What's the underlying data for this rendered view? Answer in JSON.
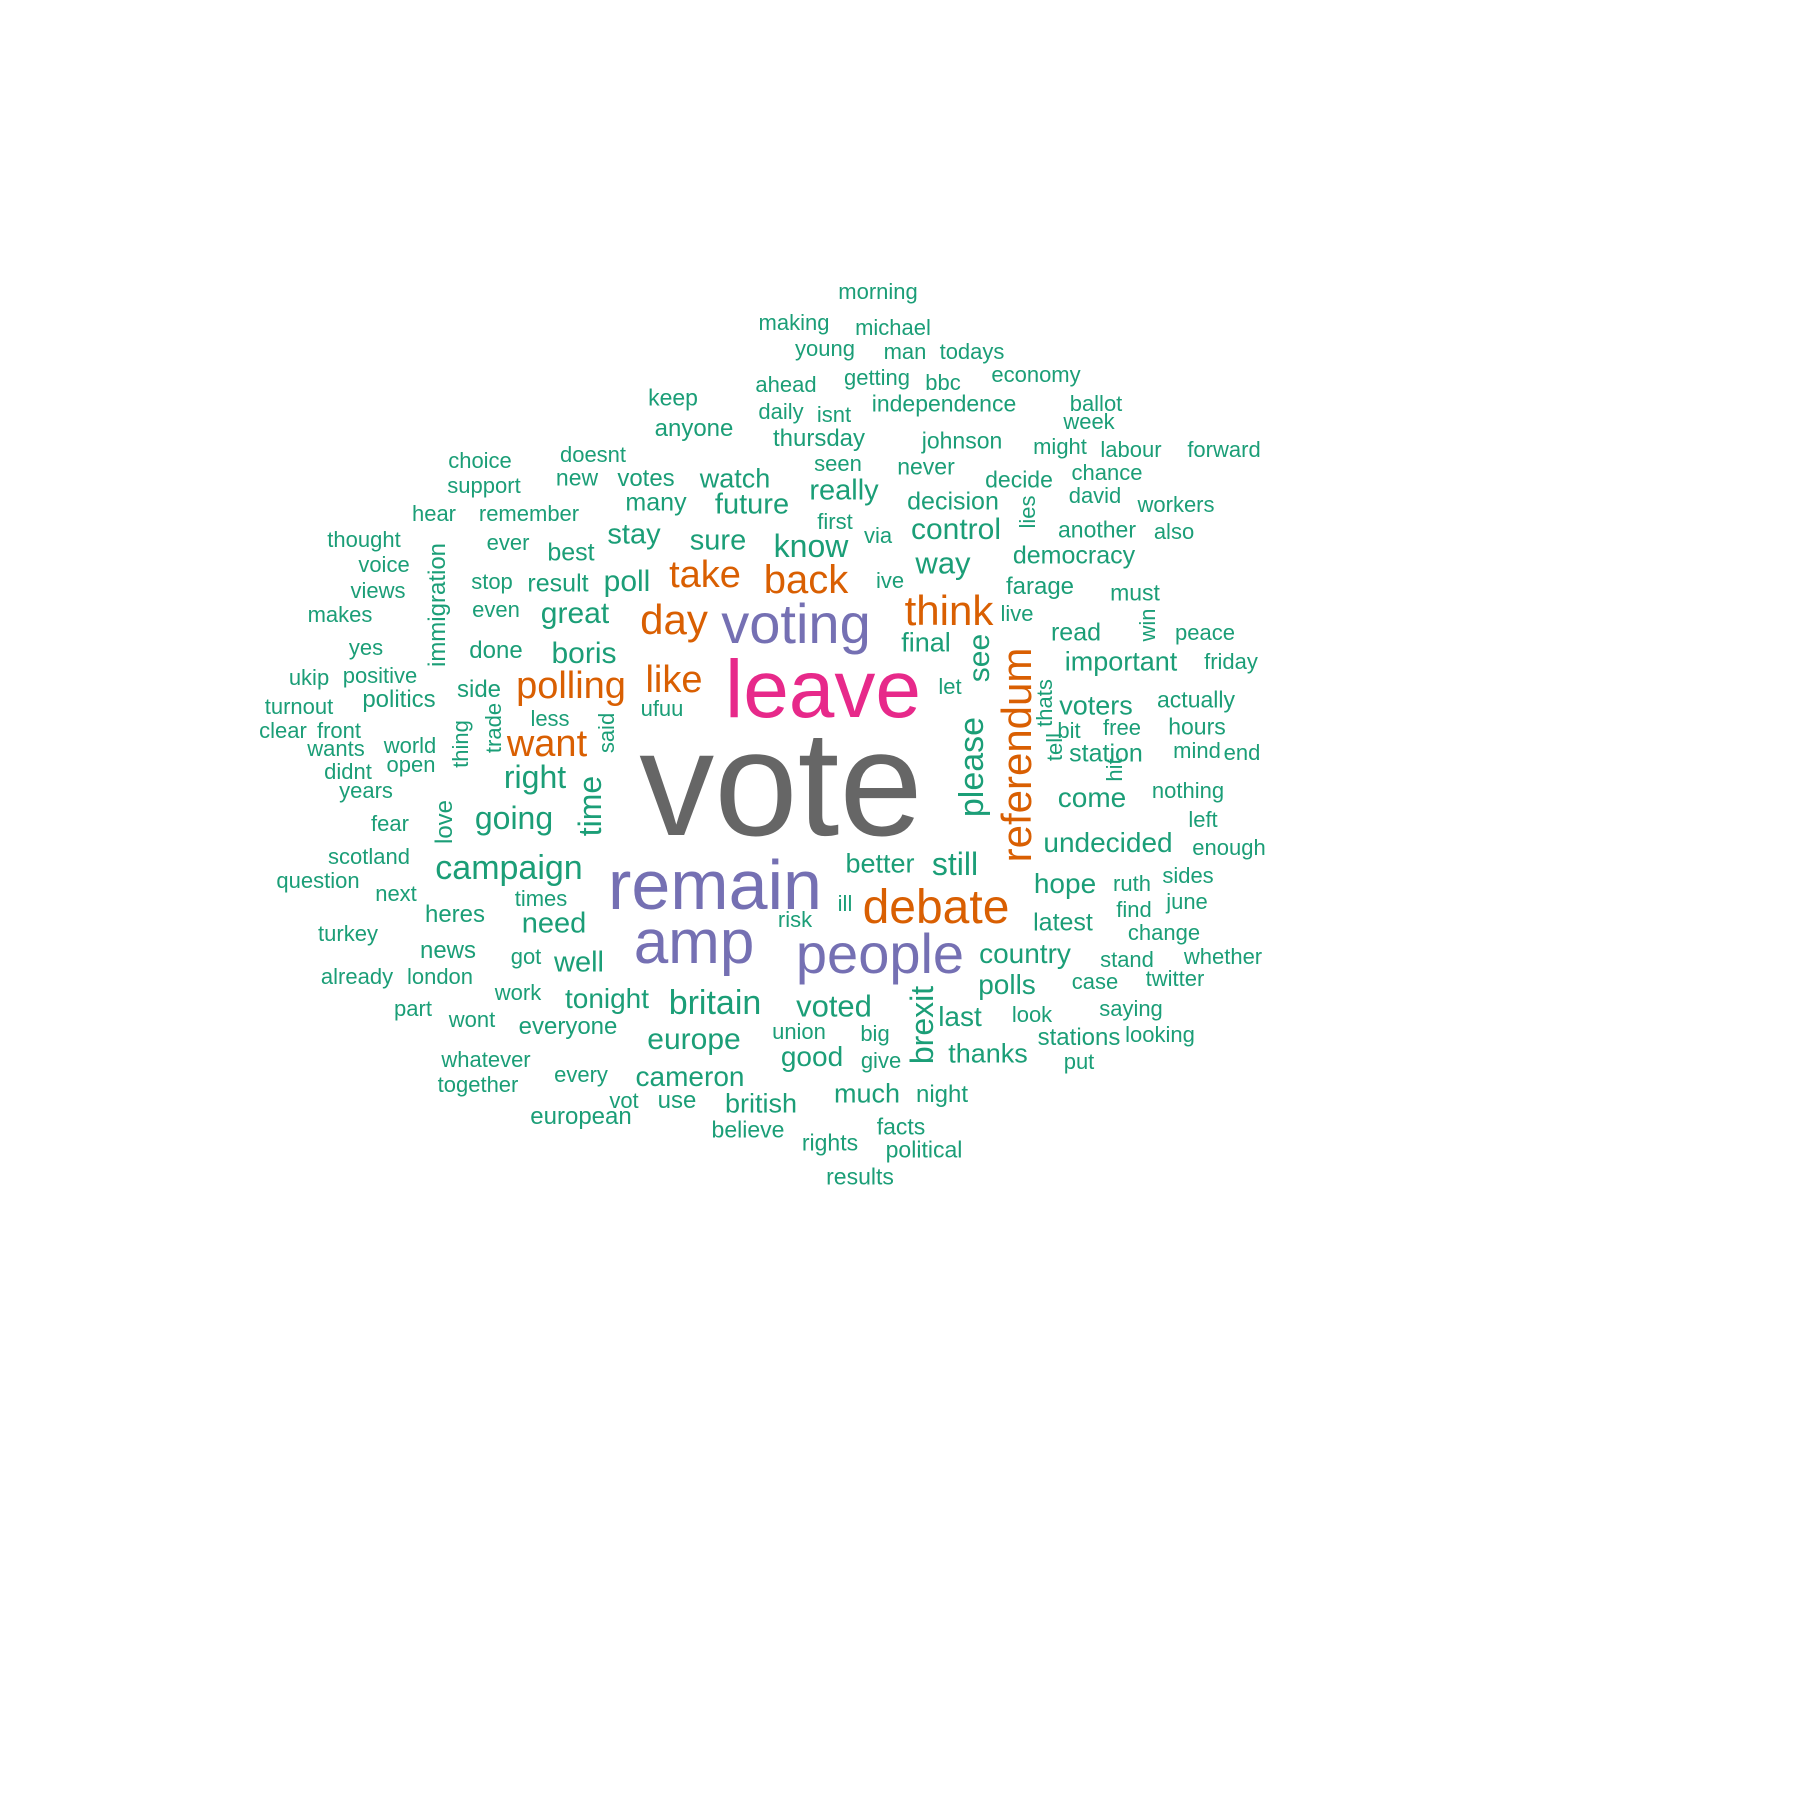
{
  "colors": {
    "level1": "#666666",
    "level2": "#E7298A",
    "level3": "#7570B3",
    "level4": "#D95F02",
    "level5": "#1B9E77"
  },
  "words": [
    {
      "text": "vote",
      "level": 1,
      "weight": 1.0
    },
    {
      "text": "leave",
      "level": 2,
      "weight": 0.62
    },
    {
      "text": "remain",
      "level": 3,
      "weight": 0.52
    },
    {
      "text": "amp",
      "level": 3,
      "weight": 0.45
    },
    {
      "text": "voting",
      "level": 3,
      "weight": 0.41
    },
    {
      "text": "people",
      "level": 3,
      "weight": 0.41
    },
    {
      "text": "debate",
      "level": 4,
      "weight": 0.36
    },
    {
      "text": "referendum",
      "level": 4,
      "weight": 0.32
    },
    {
      "text": "day",
      "level": 4,
      "weight": 0.32
    },
    {
      "text": "think",
      "level": 4,
      "weight": 0.32
    },
    {
      "text": "back",
      "level": 4,
      "weight": 0.3
    },
    {
      "text": "take",
      "level": 4,
      "weight": 0.28
    },
    {
      "text": "polling",
      "level": 4,
      "weight": 0.28
    },
    {
      "text": "like",
      "level": 4,
      "weight": 0.28
    },
    {
      "text": "want",
      "level": 4,
      "weight": 0.28
    },
    {
      "text": "campaign",
      "level": 5,
      "weight": 0.26
    },
    {
      "text": "britain",
      "level": 5,
      "weight": 0.26
    },
    {
      "text": "please",
      "level": 5,
      "weight": 0.26
    },
    {
      "text": "brexit",
      "level": 5,
      "weight": 0.25
    },
    {
      "text": "still",
      "level": 5,
      "weight": 0.25
    },
    {
      "text": "going",
      "level": 5,
      "weight": 0.25
    },
    {
      "text": "right",
      "level": 5,
      "weight": 0.25
    },
    {
      "text": "know",
      "level": 5,
      "weight": 0.25
    },
    {
      "text": "time",
      "level": 5,
      "weight": 0.25
    },
    {
      "text": "voted",
      "level": 5,
      "weight": 0.24
    },
    {
      "text": "way",
      "level": 5,
      "weight": 0.24
    },
    {
      "text": "control",
      "level": 5,
      "weight": 0.23
    },
    {
      "text": "see",
      "level": 5,
      "weight": 0.23
    },
    {
      "text": "boris",
      "level": 5,
      "weight": 0.23
    },
    {
      "text": "europe",
      "level": 5,
      "weight": 0.23
    },
    {
      "text": "poll",
      "level": 5,
      "weight": 0.23
    },
    {
      "text": "great",
      "level": 5,
      "weight": 0.23
    },
    {
      "text": "well",
      "level": 5,
      "weight": 0.22
    },
    {
      "text": "need",
      "level": 5,
      "weight": 0.22
    },
    {
      "text": "sure",
      "level": 5,
      "weight": 0.22
    },
    {
      "text": "stay",
      "level": 5,
      "weight": 0.22
    },
    {
      "text": "future",
      "level": 5,
      "weight": 0.22
    },
    {
      "text": "really",
      "level": 5,
      "weight": 0.22
    },
    {
      "text": "cameron",
      "level": 5,
      "weight": 0.21
    },
    {
      "text": "good",
      "level": 5,
      "weight": 0.21
    },
    {
      "text": "tonight",
      "level": 5,
      "weight": 0.21
    },
    {
      "text": "country",
      "level": 5,
      "weight": 0.21
    },
    {
      "text": "polls",
      "level": 5,
      "weight": 0.21
    },
    {
      "text": "last",
      "level": 5,
      "weight": 0.21
    },
    {
      "text": "come",
      "level": 5,
      "weight": 0.21
    },
    {
      "text": "hope",
      "level": 5,
      "weight": 0.21
    },
    {
      "text": "undecided",
      "level": 5,
      "weight": 0.21
    },
    {
      "text": "better",
      "level": 5,
      "weight": 0.2
    },
    {
      "text": "important",
      "level": 5,
      "weight": 0.2
    },
    {
      "text": "voters",
      "level": 5,
      "weight": 0.2
    },
    {
      "text": "thanks",
      "level": 5,
      "weight": 0.2
    },
    {
      "text": "british",
      "level": 5,
      "weight": 0.2
    },
    {
      "text": "much",
      "level": 5,
      "weight": 0.2
    },
    {
      "text": "final",
      "level": 5,
      "weight": 0.2
    },
    {
      "text": "watch",
      "level": 5,
      "weight": 0.2
    },
    {
      "text": "democracy",
      "level": 5,
      "weight": 0.19
    },
    {
      "text": "many",
      "level": 5,
      "weight": 0.19
    },
    {
      "text": "decision",
      "level": 5,
      "weight": 0.19
    },
    {
      "text": "result",
      "level": 5,
      "weight": 0.19
    },
    {
      "text": "station",
      "level": 5,
      "weight": 0.19
    },
    {
      "text": "read",
      "level": 5,
      "weight": 0.19
    },
    {
      "text": "best",
      "level": 5,
      "weight": 0.19
    },
    {
      "text": "latest",
      "level": 5,
      "weight": 0.19
    },
    {
      "text": "everyone",
      "level": 5,
      "weight": 0.18
    },
    {
      "text": "european",
      "level": 5,
      "weight": 0.18
    },
    {
      "text": "heres",
      "level": 5,
      "weight": 0.18
    },
    {
      "text": "farage",
      "level": 5,
      "weight": 0.18
    },
    {
      "text": "night",
      "level": 5,
      "weight": 0.18
    },
    {
      "text": "love",
      "level": 5,
      "weight": 0.18
    },
    {
      "text": "immigration",
      "level": 5,
      "weight": 0.18
    },
    {
      "text": "side",
      "level": 5,
      "weight": 0.18
    },
    {
      "text": "votes",
      "level": 5,
      "weight": 0.18
    },
    {
      "text": "stations",
      "level": 5,
      "weight": 0.18
    },
    {
      "text": "news",
      "level": 5,
      "weight": 0.18
    },
    {
      "text": "done",
      "level": 5,
      "weight": 0.18
    },
    {
      "text": "thursday",
      "level": 5,
      "weight": 0.18
    },
    {
      "text": "politics",
      "level": 5,
      "weight": 0.18
    },
    {
      "text": "use",
      "level": 5,
      "weight": 0.18
    },
    {
      "text": "anyone",
      "level": 5,
      "weight": 0.18
    },
    {
      "text": "political",
      "level": 5,
      "weight": 0.17
    },
    {
      "text": "believe",
      "level": 5,
      "weight": 0.17
    },
    {
      "text": "rights",
      "level": 5,
      "weight": 0.17
    },
    {
      "text": "results",
      "level": 5,
      "weight": 0.17
    },
    {
      "text": "facts",
      "level": 5,
      "weight": 0.17
    },
    {
      "text": "must",
      "level": 5,
      "weight": 0.17
    },
    {
      "text": "another",
      "level": 5,
      "weight": 0.17
    },
    {
      "text": "independence",
      "level": 5,
      "weight": 0.17
    },
    {
      "text": "johnson",
      "level": 5,
      "weight": 0.17
    },
    {
      "text": "hours",
      "level": 5,
      "weight": 0.17
    },
    {
      "text": "actually",
      "level": 5,
      "weight": 0.17
    },
    {
      "text": "never",
      "level": 5,
      "weight": 0.17
    },
    {
      "text": "decide",
      "level": 5,
      "weight": 0.17
    },
    {
      "text": "keep",
      "level": 5,
      "weight": 0.17
    },
    {
      "text": "new",
      "level": 5,
      "weight": 0.17
    },
    {
      "text": "economy",
      "level": 5,
      "weight": 0.16
    },
    {
      "text": "remember",
      "level": 5,
      "weight": 0.16
    },
    {
      "text": "support",
      "level": 5,
      "weight": 0.16
    },
    {
      "text": "choice",
      "level": 5,
      "weight": 0.16
    },
    {
      "text": "doesnt",
      "level": 5,
      "weight": 0.16
    },
    {
      "text": "daily",
      "level": 5,
      "weight": 0.16
    },
    {
      "text": "isnt",
      "level": 5,
      "weight": 0.16
    },
    {
      "text": "getting",
      "level": 5,
      "weight": 0.16
    },
    {
      "text": "ahead",
      "level": 5,
      "weight": 0.16
    },
    {
      "text": "making",
      "level": 5,
      "weight": 0.16
    },
    {
      "text": "morning",
      "level": 5,
      "weight": 0.16
    },
    {
      "text": "young",
      "level": 5,
      "weight": 0.16
    },
    {
      "text": "michael",
      "level": 5,
      "weight": 0.16
    },
    {
      "text": "todays",
      "level": 5,
      "weight": 0.16
    },
    {
      "text": "man",
      "level": 5,
      "weight": 0.16
    },
    {
      "text": "bbc",
      "level": 5,
      "weight": 0.16
    },
    {
      "text": "free",
      "level": 5,
      "weight": 0.16
    },
    {
      "text": "bit",
      "level": 5,
      "weight": 0.16
    },
    {
      "text": "mind",
      "level": 5,
      "weight": 0.16
    },
    {
      "text": "nothing",
      "level": 5,
      "weight": 0.16
    },
    {
      "text": "left",
      "level": 5,
      "weight": 0.16
    },
    {
      "text": "enough",
      "level": 5,
      "weight": 0.16
    },
    {
      "text": "ruth",
      "level": 5,
      "weight": 0.16
    },
    {
      "text": "find",
      "level": 5,
      "weight": 0.16
    },
    {
      "text": "sides",
      "level": 5,
      "weight": 0.16
    },
    {
      "text": "june",
      "level": 5,
      "weight": 0.16
    },
    {
      "text": "change",
      "level": 5,
      "weight": 0.16
    },
    {
      "text": "stand",
      "level": 5,
      "weight": 0.16
    },
    {
      "text": "case",
      "level": 5,
      "weight": 0.16
    },
    {
      "text": "twitter",
      "level": 5,
      "weight": 0.16
    },
    {
      "text": "whether",
      "level": 5,
      "weight": 0.16
    },
    {
      "text": "look",
      "level": 5,
      "weight": 0.16
    },
    {
      "text": "saying",
      "level": 5,
      "weight": 0.16
    },
    {
      "text": "looking",
      "level": 5,
      "weight": 0.16
    },
    {
      "text": "put",
      "level": 5,
      "weight": 0.16
    },
    {
      "text": "big",
      "level": 5,
      "weight": 0.16
    },
    {
      "text": "give",
      "level": 5,
      "weight": 0.16
    },
    {
      "text": "union",
      "level": 5,
      "weight": 0.16
    },
    {
      "text": "work",
      "level": 5,
      "weight": 0.16
    },
    {
      "text": "wont",
      "level": 5,
      "weight": 0.16
    },
    {
      "text": "got",
      "level": 5,
      "weight": 0.16
    },
    {
      "text": "whatever",
      "level": 5,
      "weight": 0.16
    },
    {
      "text": "every",
      "level": 5,
      "weight": 0.16
    },
    {
      "text": "together",
      "level": 5,
      "weight": 0.16
    },
    {
      "text": "already",
      "level": 5,
      "weight": 0.16
    },
    {
      "text": "london",
      "level": 5,
      "weight": 0.16
    },
    {
      "text": "turkey",
      "level": 5,
      "weight": 0.16
    },
    {
      "text": "part",
      "level": 5,
      "weight": 0.16
    },
    {
      "text": "scotland",
      "level": 5,
      "weight": 0.16
    },
    {
      "text": "question",
      "level": 5,
      "weight": 0.16
    },
    {
      "text": "next",
      "level": 5,
      "weight": 0.16
    },
    {
      "text": "fear",
      "level": 5,
      "weight": 0.16
    },
    {
      "text": "years",
      "level": 5,
      "weight": 0.16
    },
    {
      "text": "world",
      "level": 5,
      "weight": 0.16
    },
    {
      "text": "open",
      "level": 5,
      "weight": 0.16
    },
    {
      "text": "wants",
      "level": 5,
      "weight": 0.16
    },
    {
      "text": "didnt",
      "level": 5,
      "weight": 0.16
    },
    {
      "text": "front",
      "level": 5,
      "weight": 0.16
    },
    {
      "text": "clear",
      "level": 5,
      "weight": 0.16
    },
    {
      "text": "turnout",
      "level": 5,
      "weight": 0.16
    },
    {
      "text": "ukip",
      "level": 5,
      "weight": 0.16
    },
    {
      "text": "positive",
      "level": 5,
      "weight": 0.16
    },
    {
      "text": "yes",
      "level": 5,
      "weight": 0.16
    },
    {
      "text": "makes",
      "level": 5,
      "weight": 0.16
    },
    {
      "text": "views",
      "level": 5,
      "weight": 0.16
    },
    {
      "text": "voice",
      "level": 5,
      "weight": 0.16
    },
    {
      "text": "thought",
      "level": 5,
      "weight": 0.16
    },
    {
      "text": "hear",
      "level": 5,
      "weight": 0.16
    },
    {
      "text": "ever",
      "level": 5,
      "weight": 0.16
    },
    {
      "text": "even",
      "level": 5,
      "weight": 0.16
    },
    {
      "text": "stop",
      "level": 5,
      "weight": 0.16
    },
    {
      "text": "ive",
      "level": 5,
      "weight": 0.16
    },
    {
      "text": "via",
      "level": 5,
      "weight": 0.16
    },
    {
      "text": "first",
      "level": 5,
      "weight": 0.16
    },
    {
      "text": "seen",
      "level": 5,
      "weight": 0.16
    },
    {
      "text": "might",
      "level": 5,
      "weight": 0.16
    },
    {
      "text": "labour",
      "level": 5,
      "weight": 0.16
    },
    {
      "text": "chance",
      "level": 5,
      "weight": 0.16
    },
    {
      "text": "david",
      "level": 5,
      "weight": 0.16
    },
    {
      "text": "workers",
      "level": 5,
      "weight": 0.16
    },
    {
      "text": "also",
      "level": 5,
      "weight": 0.16
    },
    {
      "text": "week",
      "level": 5,
      "weight": 0.16
    },
    {
      "text": "ballot",
      "level": 5,
      "weight": 0.16
    },
    {
      "text": "forward",
      "level": 5,
      "weight": 0.16
    },
    {
      "text": "tell",
      "level": 5,
      "weight": 0.16
    },
    {
      "text": "thats",
      "level": 5,
      "weight": 0.16
    },
    {
      "text": "live",
      "level": 5,
      "weight": 0.16
    },
    {
      "text": "let",
      "level": 5,
      "weight": 0.16
    },
    {
      "text": "trade",
      "level": 5,
      "weight": 0.16
    },
    {
      "text": "thing",
      "level": 5,
      "weight": 0.16
    },
    {
      "text": "said",
      "level": 5,
      "weight": 0.16
    },
    {
      "text": "less",
      "level": 5,
      "weight": 0.16
    },
    {
      "text": "ufuu",
      "level": 5,
      "weight": 0.16
    },
    {
      "text": "times",
      "level": 5,
      "weight": 0.16
    },
    {
      "text": "ill",
      "level": 5,
      "weight": 0.16
    },
    {
      "text": "risk",
      "level": 5,
      "weight": 0.16
    },
    {
      "text": "lies",
      "level": 5,
      "weight": 0.16
    },
    {
      "text": "peace",
      "level": 5,
      "weight": 0.16
    },
    {
      "text": "win",
      "level": 5,
      "weight": 0.16
    },
    {
      "text": "friday",
      "level": 5,
      "weight": 0.16
    },
    {
      "text": "end",
      "level": 5,
      "weight": 0.16
    },
    {
      "text": "vot",
      "level": 5,
      "weight": 0.16
    },
    {
      "text": "hit",
      "level": 5,
      "weight": 0.16
    }
  ]
}
